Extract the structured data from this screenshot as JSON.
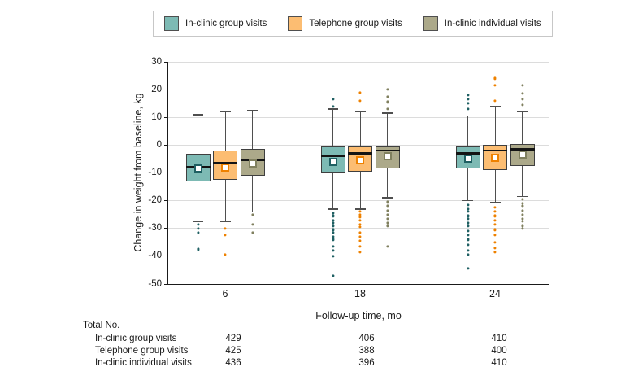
{
  "chart_data": {
    "type": "box",
    "title": "",
    "xlabel": "Follow-up time, mo",
    "ylabel": "Change in weight from baseline, kg",
    "ylim": [
      -50,
      30
    ],
    "yticks": [
      30,
      20,
      10,
      0,
      -10,
      -20,
      -30,
      -40,
      -50
    ],
    "categories": [
      "6",
      "18",
      "24"
    ],
    "grid": true,
    "legend_position": "top",
    "colors": {
      "grid": "#dcdcdc",
      "axis": "#1a1a1a",
      "box_border": "#3f3f3f",
      "whisker": "#4f4f4f",
      "median": "#141414",
      "mean_fill": "#ffffff",
      "legend_border": "#c7c7c7"
    },
    "series": [
      {
        "name": "In-clinic group visits",
        "fill": "#7dbab4",
        "accent": "#1f6063",
        "boxes": [
          {
            "low": -27.5,
            "q1": -13,
            "median": -8,
            "mean": -8.5,
            "q3": -3,
            "high": 11,
            "outliers_high": [],
            "outliers_low": [
              -28.5,
              -30,
              -31.5,
              -37.5
            ]
          },
          {
            "low": -23,
            "q1": -10,
            "median": -4,
            "mean": -6,
            "q3": -0.5,
            "high": 13,
            "outliers_high": [
              16.5,
              14
            ],
            "outliers_low": [
              -24.5,
              -25.5,
              -27,
              -28,
              -29,
              -30.5,
              -31.5,
              -33,
              -34,
              -36.5,
              -38,
              -40,
              -47
            ]
          },
          {
            "low": -20,
            "q1": -8.5,
            "median": -3,
            "mean": -5,
            "q3": -0.5,
            "high": 10.5,
            "outliers_high": [
              18,
              16.5,
              15,
              13
            ],
            "outliers_low": [
              -21.5,
              -23,
              -24,
              -25.5,
              -26.5,
              -28,
              -29,
              -31,
              -32.5,
              -34,
              -36,
              -38,
              -39.5,
              -44.5
            ]
          }
        ]
      },
      {
        "name": "Telephone group visits",
        "fill": "#fcbd72",
        "accent": "#ee8100",
        "boxes": [
          {
            "low": -27.5,
            "q1": -12.5,
            "median": -6.5,
            "mean": -8,
            "q3": -2,
            "high": 12,
            "outliers_high": [],
            "outliers_low": [
              -30,
              -32.5,
              -39.5
            ]
          },
          {
            "low": -23,
            "q1": -9.5,
            "median": -3,
            "mean": -5.5,
            "q3": -0.5,
            "high": 12,
            "outliers_high": [
              19,
              16
            ],
            "outliers_low": [
              -24,
              -25,
              -26,
              -27,
              -28.5,
              -29.5,
              -31.5,
              -33,
              -34.5,
              -36.5,
              -38.5
            ]
          },
          {
            "low": -20.5,
            "q1": -9,
            "median": -2,
            "mean": -4.5,
            "q3": 0,
            "high": 14,
            "outliers_high": [
              24,
              21.5,
              16
            ],
            "outliers_low": [
              -22.5,
              -24,
              -25.5,
              -27,
              -28.5,
              -30.5,
              -32.5,
              -35,
              -37,
              -38.5
            ]
          }
        ]
      },
      {
        "name": "In-clinic individual visits",
        "fill": "#aca98a",
        "accent": "#80805f",
        "boxes": [
          {
            "low": -24,
            "q1": -11,
            "median": -5.5,
            "mean": -6.5,
            "q3": -1.5,
            "high": 12.5,
            "outliers_high": [],
            "outliers_low": [
              -25,
              -28.5,
              -31.5
            ]
          },
          {
            "low": -19,
            "q1": -8.5,
            "median": -2,
            "mean": -4,
            "q3": -0.5,
            "high": 11.5,
            "outliers_high": [
              20,
              17.5,
              15.5,
              13
            ],
            "outliers_low": [
              -20.5,
              -22,
              -23.5,
              -25,
              -26.5,
              -28,
              -29,
              -36.5
            ]
          },
          {
            "low": -18.5,
            "q1": -7.5,
            "median": -1.5,
            "mean": -3.5,
            "q3": 0.5,
            "high": 12,
            "outliers_high": [
              21.5,
              18.5,
              16.5,
              14.5
            ],
            "outliers_low": [
              -19.5,
              -21,
              -22,
              -23.5,
              -25,
              -26.5,
              -27.5,
              -29,
              -30
            ]
          }
        ]
      }
    ]
  },
  "table": {
    "header": "Total No.",
    "rows": [
      {
        "label": "In-clinic group visits",
        "values": [
          "429",
          "406",
          "410"
        ]
      },
      {
        "label": "Telephone group visits",
        "values": [
          "425",
          "388",
          "400"
        ]
      },
      {
        "label": "In-clinic individual visits",
        "values": [
          "436",
          "396",
          "410"
        ]
      }
    ]
  }
}
